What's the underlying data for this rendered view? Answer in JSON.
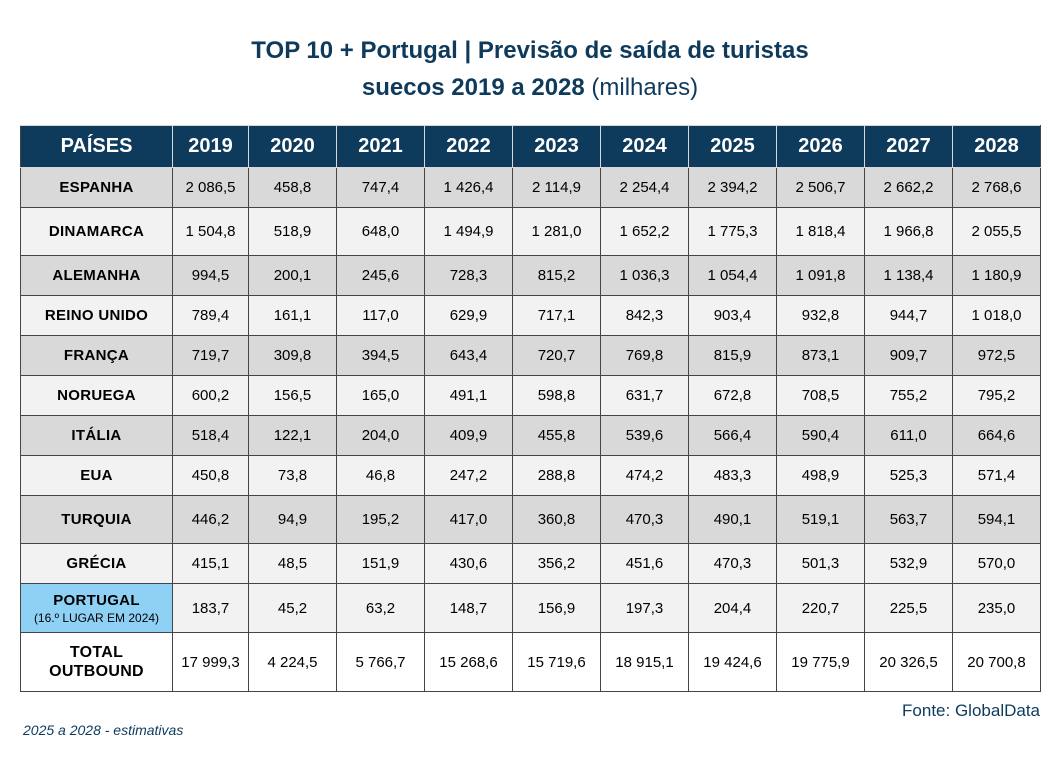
{
  "title_line1": "TOP 10 + Portugal | Previsão de saída de turistas",
  "title_line2_bold": "suecos 2019 a 2028",
  "title_line2_unit": "(milhares)",
  "source": "Fonte: GlobalData",
  "note": "2025 a 2028 - estimativas",
  "chart_data": {
    "type": "table",
    "header_label": "PAÍSES",
    "columns": [
      "2019",
      "2020",
      "2021",
      "2022",
      "2023",
      "2024",
      "2025",
      "2026",
      "2027",
      "2028"
    ],
    "rows": [
      {
        "country": "ESPANHA",
        "values": [
          "2 086,5",
          "458,8",
          "747,4",
          "1 426,4",
          "2 114,9",
          "2 254,4",
          "2 394,2",
          "2 506,7",
          "2 662,2",
          "2 768,6"
        ]
      },
      {
        "country": "DINAMARCA",
        "values": [
          "1 504,8",
          "518,9",
          "648,0",
          "1 494,9",
          "1 281,0",
          "1 652,2",
          "1 775,3",
          "1 818,4",
          "1 966,8",
          "2 055,5"
        ]
      },
      {
        "country": "ALEMANHA",
        "values": [
          "994,5",
          "200,1",
          "245,6",
          "728,3",
          "815,2",
          "1 036,3",
          "1 054,4",
          "1 091,8",
          "1 138,4",
          "1 180,9"
        ]
      },
      {
        "country": "REINO UNIDO",
        "values": [
          "789,4",
          "161,1",
          "117,0",
          "629,9",
          "717,1",
          "842,3",
          "903,4",
          "932,8",
          "944,7",
          "1 018,0"
        ]
      },
      {
        "country": "FRANÇA",
        "values": [
          "719,7",
          "309,8",
          "394,5",
          "643,4",
          "720,7",
          "769,8",
          "815,9",
          "873,1",
          "909,7",
          "972,5"
        ]
      },
      {
        "country": "NORUEGA",
        "values": [
          "600,2",
          "156,5",
          "165,0",
          "491,1",
          "598,8",
          "631,7",
          "672,8",
          "708,5",
          "755,2",
          "795,2"
        ]
      },
      {
        "country": "ITÁLIA",
        "values": [
          "518,4",
          "122,1",
          "204,0",
          "409,9",
          "455,8",
          "539,6",
          "566,4",
          "590,4",
          "611,0",
          "664,6"
        ]
      },
      {
        "country": "EUA",
        "values": [
          "450,8",
          "73,8",
          "46,8",
          "247,2",
          "288,8",
          "474,2",
          "483,3",
          "498,9",
          "525,3",
          "571,4"
        ]
      },
      {
        "country": "TURQUIA",
        "values": [
          "446,2",
          "94,9",
          "195,2",
          "417,0",
          "360,8",
          "470,3",
          "490,1",
          "519,1",
          "563,7",
          "594,1"
        ]
      },
      {
        "country": "GRÉCIA",
        "values": [
          "415,1",
          "48,5",
          "151,9",
          "430,6",
          "356,2",
          "451,6",
          "470,3",
          "501,3",
          "532,9",
          "570,0"
        ]
      },
      {
        "country": "PORTUGAL",
        "country_sub": "(16.º LUGAR EM 2024)",
        "values": [
          "183,7",
          "45,2",
          "63,2",
          "148,7",
          "156,9",
          "197,3",
          "204,4",
          "220,7",
          "225,5",
          "235,0"
        ]
      },
      {
        "country": "TOTAL",
        "country_line2": "OUTBOUND",
        "values": [
          "17 999,3",
          "4 224,5",
          "5 766,7",
          "15 268,6",
          "15 719,6",
          "18 915,1",
          "19 424,6",
          "19 775,9",
          "20 326,5",
          "20 700,8"
        ]
      }
    ]
  },
  "colors": {
    "header_bg": "#0e3a5c",
    "title": "#0e3a5c",
    "portugal_highlight": "#8fd0f5",
    "row_dark": "#d9d9d9",
    "row_light": "#f2f2f2"
  }
}
